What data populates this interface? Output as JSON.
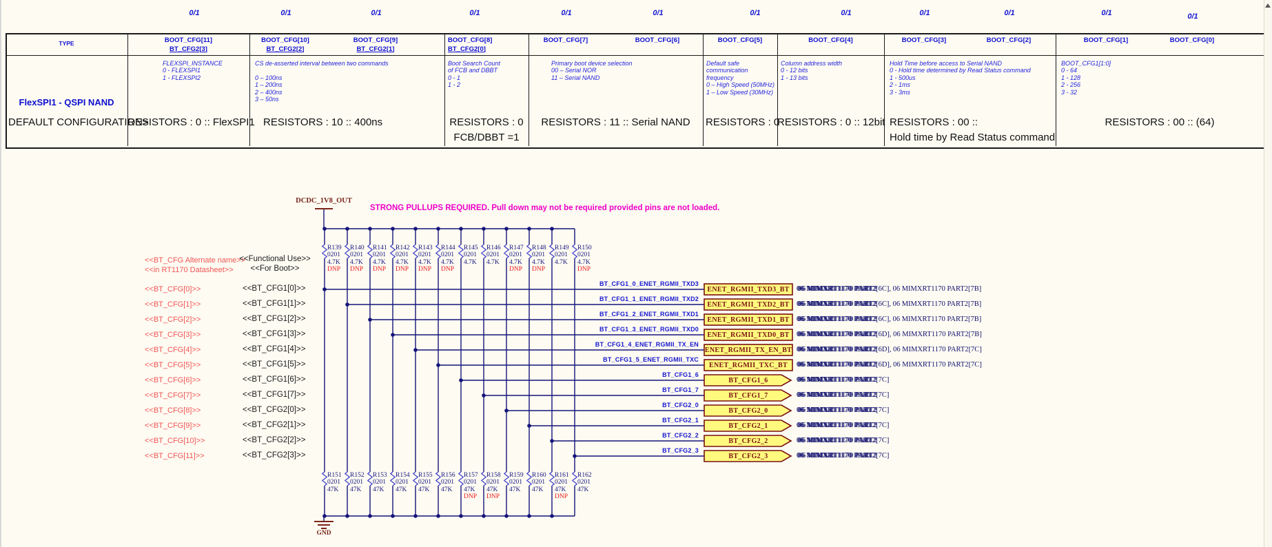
{
  "colors": {
    "background": "#fdfbf2",
    "table_border": "#1a1a1a",
    "header_blue": "#0f0fd0",
    "desc_blue": "#2424dc",
    "wire_navy": "#14147a",
    "zigzag_blue": "#4343cc",
    "resistor_navy": "#15157d",
    "dnp_red": "#f01818",
    "alt_name_red": "#f25555",
    "note_magenta": "#ee00c8",
    "power_maroon": "#7b2418",
    "port_fill": "#fffa7e",
    "port_border": "#7a1010",
    "net_label_blue": "#1717cf",
    "ref_navy": "#10106e"
  },
  "bit_flags": [
    "0/1",
    "0/1",
    "0/1",
    "0/1",
    "0/1",
    "0/1",
    "0/1",
    "0/1",
    "0/1",
    "0/1",
    "0/1",
    "0/1"
  ],
  "table": {
    "type_label": "TYPE",
    "row_label": "FlexSPI1 - QSPI NAND",
    "headers": [
      {
        "boot": "BOOT_CFG[11]",
        "bt": "BT_CFG2[3]"
      },
      {
        "boot": "BOOT_CFG[10]",
        "bt": "BT_CFG2[2]"
      },
      {
        "boot": "BOOT_CFG[9]",
        "bt": "BT_CFG2[1]"
      },
      {
        "boot": "BOOT_CFG[8]",
        "bt": "BT_CFG2[0]"
      },
      {
        "boot": "BOOT_CFG[7]",
        "bt": ""
      },
      {
        "boot": "BOOT_CFG[6]",
        "bt": ""
      },
      {
        "boot": "BOOT_CFG[5]",
        "bt": ""
      },
      {
        "boot": "BOOT_CFG[4]",
        "bt": ""
      },
      {
        "boot": "BOOT_CFG[3]",
        "bt": ""
      },
      {
        "boot": "BOOT_CFG[2]",
        "bt": ""
      },
      {
        "boot": "BOOT_CFG[1]",
        "bt": ""
      },
      {
        "boot": "BOOT_CFG[0]",
        "bt": ""
      }
    ],
    "descriptions": {
      "cfg11": [
        "FLEXSPI_INSTANCE",
        "0 - FLEXSPI1",
        "1 - FLEXSPI2"
      ],
      "cfg10_9": [
        "CS de-asserted interval between two commands",
        "",
        "0 – 100ns",
        "1 – 200ns",
        "2 – 400ns",
        "3 – 50ns"
      ],
      "cfg8": [
        "Boot Search Count",
        "of FCB and DBBT",
        "0 - 1",
        "1 - 2"
      ],
      "cfg7_6": [
        "Primary boot device selection",
        "00 – Serial NOR",
        "11 – Serial NAND"
      ],
      "cfg5": [
        "Default safe",
        "communication",
        "frequency",
        "0 – High Speed (50MHz)",
        "1 – Low Speed (30MHz)"
      ],
      "cfg4": [
        "Column address width",
        "0 - 12 bits",
        "1 - 13 bits"
      ],
      "cfg3_2": [
        "Hold Time before access to Serial NAND",
        "0 - Hold time determined by Read Status command",
        "1 - 500us",
        "2 - 1ms",
        "3 - 3ms"
      ],
      "cfg1_0": [
        "BOOT_CFG1[1:0]",
        "0 - 64",
        "1 - 128",
        "2 - 256",
        "3 - 32"
      ]
    },
    "defaults": {
      "type": "DEFAULT CONFIGURATION>",
      "cfg11": "RESISTORS : 0 :: FlexSPI1",
      "cfg10_9": "RESISTORS : 10 :: 400ns",
      "cfg8": "RESISTORS : 0",
      "cfg8_line2": "FCB/DBBT =1",
      "cfg7_6": "RESISTORS : 11 :: Serial NAND",
      "cfg5": "RESISTORS : 0",
      "cfg4": "RESISTORS : 0 :: 12bit",
      "cfg3_2": "RESISTORS : 00 ::",
      "cfg3_2_line2": "Hold time by Read Status command",
      "cfg1_0": "RESISTORS : 00 :: (64)"
    }
  },
  "schematic": {
    "power_net": "DCDC_1V8_OUT",
    "gnd_label": "GND",
    "note": "STRONG PULLUPS REQUIRED. Pull down may not be required provided pins are not loaded.",
    "left_header_red": [
      "<<BT_CFG Alternate name>>",
      "<<in RT1170 Datasheet>>"
    ],
    "left_header_black": [
      "<<Functional Use>>",
      "<<For Boot>>"
    ],
    "top_resistors": [
      {
        "ref": "R139",
        "size": "0201",
        "val": "4.7K",
        "dnp": "DNP"
      },
      {
        "ref": "R140",
        "size": "0201",
        "val": "4.7K",
        "dnp": "DNP"
      },
      {
        "ref": "R141",
        "size": "0201",
        "val": "4.7K",
        "dnp": "DNP"
      },
      {
        "ref": "R142",
        "size": "0201",
        "val": "4.7K",
        "dnp": "DNP"
      },
      {
        "ref": "R143",
        "size": "0201",
        "val": "4.7K",
        "dnp": "DNP"
      },
      {
        "ref": "R144",
        "size": "0201",
        "val": "4.7K",
        "dnp": "DNP"
      },
      {
        "ref": "R145",
        "size": "0201",
        "val": "4.7K",
        "dnp": ""
      },
      {
        "ref": "R146",
        "size": "0201",
        "val": "4.7K",
        "dnp": ""
      },
      {
        "ref": "R147",
        "size": "0201",
        "val": "4.7K",
        "dnp": "DNP"
      },
      {
        "ref": "R148",
        "size": "0201",
        "val": "4.7K",
        "dnp": "DNP"
      },
      {
        "ref": "R149",
        "size": "0201",
        "val": "4.7K",
        "dnp": ""
      },
      {
        "ref": "R150",
        "size": "0201",
        "val": "4.7K",
        "dnp": "DNP"
      }
    ],
    "bottom_resistors": [
      {
        "ref": "R151",
        "size": "0201",
        "val": "47K",
        "dnp": ""
      },
      {
        "ref": "R152",
        "size": "0201",
        "val": "47K",
        "dnp": ""
      },
      {
        "ref": "R153",
        "size": "0201",
        "val": "47K",
        "dnp": ""
      },
      {
        "ref": "R154",
        "size": "0201",
        "val": "47K",
        "dnp": ""
      },
      {
        "ref": "R155",
        "size": "0201",
        "val": "47K",
        "dnp": ""
      },
      {
        "ref": "R156",
        "size": "0201",
        "val": "47K",
        "dnp": ""
      },
      {
        "ref": "R157",
        "size": "0201",
        "val": "47K",
        "dnp": "DNP"
      },
      {
        "ref": "R158",
        "size": "0201",
        "val": "47K",
        "dnp": "DNP"
      },
      {
        "ref": "R159",
        "size": "0201",
        "val": "47K",
        "dnp": ""
      },
      {
        "ref": "R160",
        "size": "0201",
        "val": "47K",
        "dnp": ""
      },
      {
        "ref": "R161",
        "size": "0201",
        "val": "47K",
        "dnp": "DNP"
      },
      {
        "ref": "R162",
        "size": "0201",
        "val": "47K",
        "dnp": ""
      }
    ],
    "rows": [
      {
        "alt": "<<BT_CFG[0]>>",
        "func": "<<BT_CFG1[0]>>",
        "net": "BT_CFG1_0_ENET_RGMII_TXD3",
        "port": "ENET_RGMII_TXD3_BT",
        "ref_smear": "06 MIMXRT1170 PART2",
        "ref_rest": "[6C], 06 MIMXRT1170 PART2[7B]"
      },
      {
        "alt": "<<BT_CFG[1]>>",
        "func": "<<BT_CFG1[1]>>",
        "net": "BT_CFG1_1_ENET_RGMII_TXD2",
        "port": "ENET_RGMII_TXD2_BT",
        "ref_smear": "06 MIMXRT1170 PART2",
        "ref_rest": "[6C], 06 MIMXRT1170 PART2[7B]"
      },
      {
        "alt": "<<BT_CFG[2]>>",
        "func": "<<BT_CFG1[2]>>",
        "net": "BT_CFG1_2_ENET_RGMII_TXD1",
        "port": "ENET_RGMII_TXD1_BT",
        "ref_smear": "06 MIMXRT1170 PART2",
        "ref_rest": "[6C], 06 MIMXRT1170 PART2[7B]"
      },
      {
        "alt": "<<BT_CFG[3]>>",
        "func": "<<BT_CFG1[3]>>",
        "net": "BT_CFG1_3_ENET_RGMII_TXD0",
        "port": "ENET_RGMII_TXD0_BT",
        "ref_smear": "06 MIMXRT1170 PART2",
        "ref_rest": "[6D], 06 MIMXRT1170 PART2[7B]"
      },
      {
        "alt": "<<BT_CFG[4]>>",
        "func": "<<BT_CFG1[4]>>",
        "net": "BT_CFG1_4_ENET_RGMII_TX_EN",
        "port": "ENET_RGMII_TX_EN_BT",
        "ref_smear": "06 MIMXRT1170 PART2",
        "ref_rest": "[6D], 06 MIMXRT1170 PART2[7C]"
      },
      {
        "alt": "<<BT_CFG[5]>>",
        "func": "<<BT_CFG1[5]>>",
        "net": "BT_CFG1_5_ENET_RGMII_TXC",
        "port": "ENET_RGMII_TXC_BT",
        "ref_smear": "06 MIMXRT1170 PART2",
        "ref_rest": "[6D], 06 MIMXRT1170 PART2[7C]"
      },
      {
        "alt": "<<BT_CFG[6]>>",
        "func": "<<BT_CFG1[6]>>",
        "net": "BT_CFG1_6",
        "port": "BT_CFG1_6",
        "ref_smear": "06 MIMXRT1170 PART2",
        "ref_rest": "[7C]"
      },
      {
        "alt": "<<BT_CFG[7]>>",
        "func": "<<BT_CFG1[7]>>",
        "net": "BT_CFG1_7",
        "port": "BT_CFG1_7",
        "ref_smear": "06 MIMXRT1170 PART2",
        "ref_rest": "[7C]"
      },
      {
        "alt": "<<BT_CFG[8]>>",
        "func": "<<BT_CFG2[0]>>",
        "net": "BT_CFG2_0",
        "port": "BT_CFG2_0",
        "ref_smear": "06 MIMXRT1170 PART2",
        "ref_rest": "[7C]"
      },
      {
        "alt": "<<BT_CFG[9]>>",
        "func": "<<BT_CFG2[1]>>",
        "net": "BT_CFG2_1",
        "port": "BT_CFG2_1",
        "ref_smear": "06 MIMXRT1170 PART2",
        "ref_rest": "[7C]"
      },
      {
        "alt": "<<BT_CFG[10]>>",
        "func": "<<BT_CFG2[2]>>",
        "net": "BT_CFG2_2",
        "port": "BT_CFG2_2",
        "ref_smear": "06 MIMXRT1170 PART2",
        "ref_rest": "[7C]"
      },
      {
        "alt": "<<BT_CFG[11]>>",
        "func": "<<BT_CFG2[3]>>",
        "net": "BT_CFG2_3",
        "port": "BT_CFG2_3",
        "ref_smear": "06 MIMXRT1170 PART2",
        "ref_rest": "[7C]"
      }
    ]
  }
}
